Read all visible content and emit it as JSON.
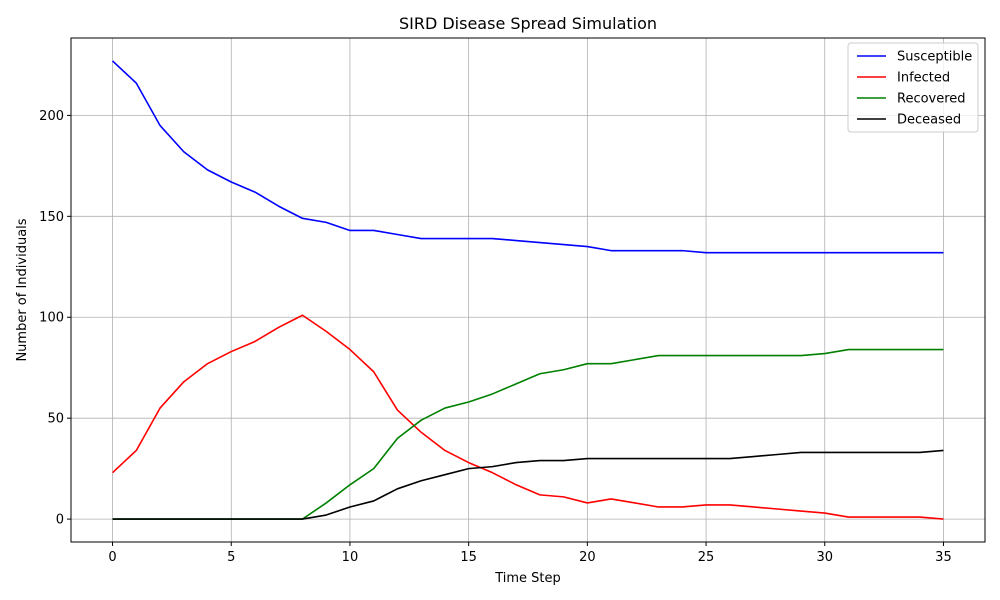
{
  "chart_data": {
    "type": "line",
    "title": "SIRD Disease Spread Simulation",
    "xlabel": "Time Step",
    "ylabel": "Number of Individuals",
    "xlim": [
      -1.75,
      36.75
    ],
    "ylim": [
      -11.35,
      238.35
    ],
    "xticks": [
      0,
      5,
      10,
      15,
      20,
      25,
      30,
      35
    ],
    "yticks": [
      0,
      50,
      100,
      150,
      200
    ],
    "grid": true,
    "legend_position": "top-right",
    "x": [
      0,
      1,
      2,
      3,
      4,
      5,
      6,
      7,
      8,
      9,
      10,
      11,
      12,
      13,
      14,
      15,
      16,
      17,
      18,
      19,
      20,
      21,
      22,
      23,
      24,
      25,
      26,
      27,
      28,
      29,
      30,
      31,
      32,
      33,
      34,
      35
    ],
    "series": [
      {
        "name": "Susceptible",
        "color": "#0000ff",
        "values": [
          227,
          216,
          195,
          182,
          173,
          167,
          162,
          155,
          149,
          147,
          143,
          143,
          141,
          139,
          139,
          139,
          139,
          138,
          137,
          136,
          135,
          133,
          133,
          133,
          133,
          132,
          132,
          132,
          132,
          132,
          132,
          132,
          132,
          132,
          132,
          132
        ]
      },
      {
        "name": "Infected",
        "color": "#ff0000",
        "values": [
          23,
          34,
          55,
          68,
          77,
          83,
          88,
          95,
          101,
          93,
          84,
          73,
          54,
          43,
          34,
          28,
          23,
          17,
          12,
          11,
          8,
          10,
          8,
          6,
          6,
          7,
          7,
          6,
          5,
          4,
          3,
          1,
          1,
          1,
          1,
          0
        ]
      },
      {
        "name": "Recovered",
        "color": "#008000",
        "values": [
          0,
          0,
          0,
          0,
          0,
          0,
          0,
          0,
          0,
          8,
          17,
          25,
          40,
          49,
          55,
          58,
          62,
          67,
          72,
          74,
          77,
          77,
          79,
          81,
          81,
          81,
          81,
          81,
          81,
          81,
          82,
          84,
          84,
          84,
          84,
          84
        ]
      },
      {
        "name": "Deceased",
        "color": "#000000",
        "values": [
          0,
          0,
          0,
          0,
          0,
          0,
          0,
          0,
          0,
          2,
          6,
          9,
          15,
          19,
          22,
          25,
          26,
          28,
          29,
          29,
          30,
          30,
          30,
          30,
          30,
          30,
          30,
          31,
          32,
          33,
          33,
          33,
          33,
          33,
          33,
          34
        ]
      }
    ]
  }
}
